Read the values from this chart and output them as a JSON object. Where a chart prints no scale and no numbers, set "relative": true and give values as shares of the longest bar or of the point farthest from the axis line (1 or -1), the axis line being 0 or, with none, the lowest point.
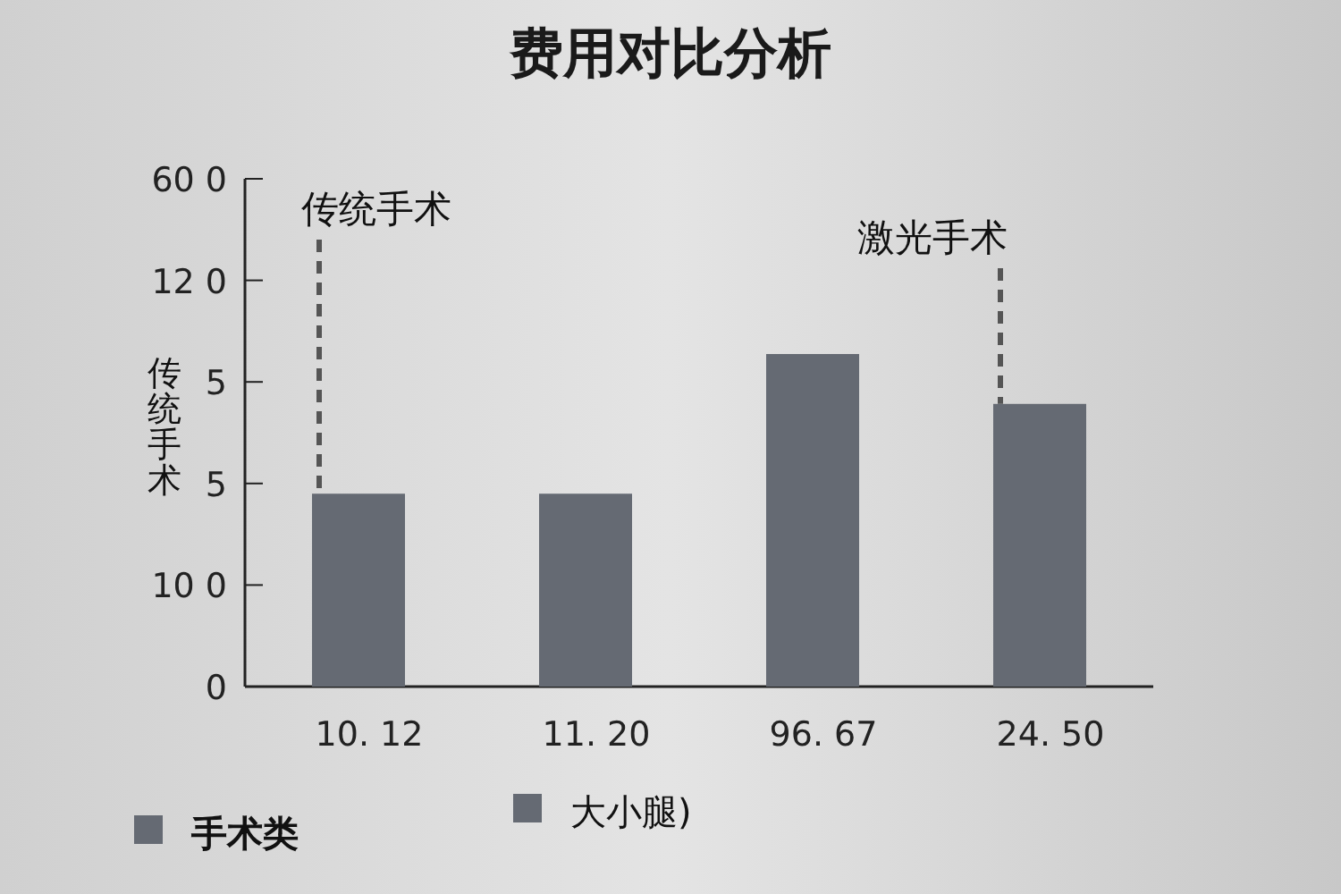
{
  "chart_data": {
    "type": "bar",
    "title": "费用对比分析",
    "ylabel": "传统手术",
    "relative": true,
    "categories": [
      "10. 12",
      "11. 20",
      "96. 67",
      "24. 50"
    ],
    "series": [
      {
        "name": "手术类",
        "color": "#656a73",
        "values": [
          0.58,
          0.58,
          1,
          0.85
        ]
      },
      {
        "name": "大小腿)",
        "color": "#656a73",
        "values": [
          null,
          null,
          null,
          null
        ]
      }
    ],
    "annotations": [
      "0",
      "10 0",
      "5",
      "5",
      "12 0",
      "60 0",
      "传统手术",
      "激光手术"
    ],
    "legend": "bottom"
  }
}
